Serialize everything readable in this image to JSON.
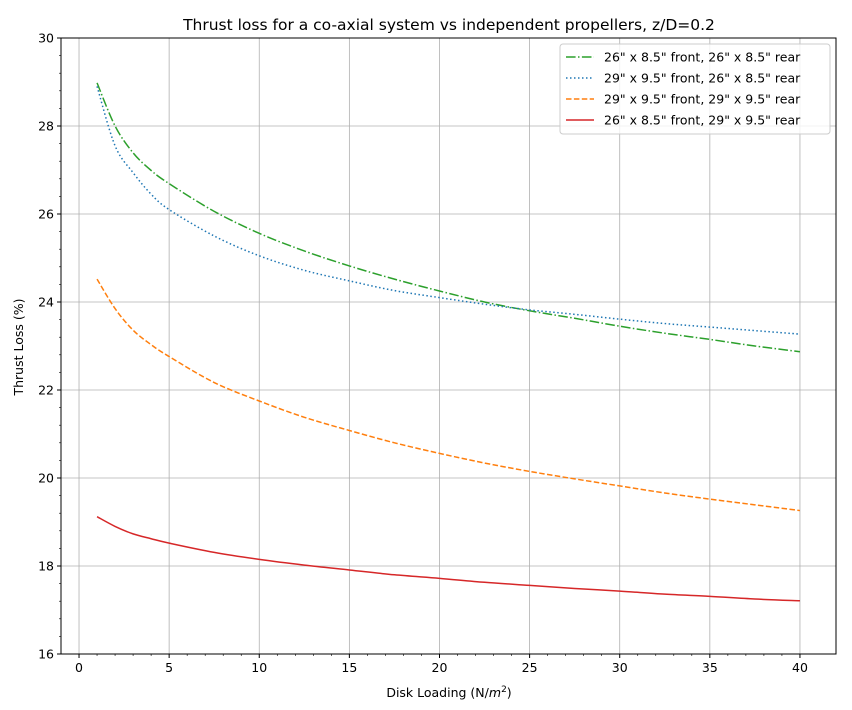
{
  "chart_data": {
    "type": "line",
    "title": "Thrust loss for a co-axial system vs independent propellers, z/D=0.2",
    "xlabel": "Disk Loading (N/m²)",
    "ylabel": "Thrust Loss (%)",
    "xlim": [
      -1,
      42
    ],
    "ylim": [
      16,
      30
    ],
    "x_ticks": [
      "0",
      "5",
      "10",
      "15",
      "20",
      "25",
      "30",
      "35",
      "40"
    ],
    "y_ticks": [
      "16",
      "18",
      "20",
      "22",
      "24",
      "26",
      "28",
      "30"
    ],
    "grid": true,
    "legend_position": "top-right",
    "x": [
      1,
      2,
      3,
      4,
      5,
      7.5,
      10,
      12.5,
      15,
      17.5,
      20,
      22.5,
      25,
      27.5,
      30,
      32.5,
      35,
      37.5,
      40
    ],
    "series": [
      {
        "name": "26\" x 8.5\" front, 26\" x 8.5\" rear",
        "color": "#2ca02c",
        "style": "dashdot",
        "values": [
          28.98,
          28.0,
          27.39,
          26.99,
          26.69,
          26.06,
          25.56,
          25.16,
          24.82,
          24.52,
          24.25,
          24.0,
          23.8,
          23.63,
          23.45,
          23.29,
          23.15,
          23.0,
          22.87
        ]
      },
      {
        "name": "29\" x 9.5\" front, 26\" x 8.5\" rear",
        "color": "#1f77b4",
        "style": "dotted",
        "values": [
          28.9,
          27.55,
          26.94,
          26.45,
          26.1,
          25.5,
          25.05,
          24.72,
          24.48,
          24.26,
          24.1,
          23.95,
          23.82,
          23.72,
          23.61,
          23.51,
          23.43,
          23.35,
          23.27
        ]
      },
      {
        "name": "29\" x 9.5\" front, 29\" x 9.5\" rear",
        "color": "#ff7f0e",
        "style": "dashed",
        "values": [
          24.52,
          23.85,
          23.36,
          23.03,
          22.76,
          22.17,
          21.75,
          21.38,
          21.08,
          20.8,
          20.56,
          20.34,
          20.15,
          19.98,
          19.82,
          19.66,
          19.52,
          19.39,
          19.26
        ]
      },
      {
        "name": "26\" x 8.5\" front, 29\" x 9.5\" rear",
        "color": "#d62728",
        "style": "solid",
        "values": [
          19.12,
          18.9,
          18.73,
          18.62,
          18.52,
          18.31,
          18.15,
          18.02,
          17.91,
          17.8,
          17.72,
          17.63,
          17.56,
          17.49,
          17.43,
          17.36,
          17.31,
          17.25,
          17.21
        ]
      }
    ]
  }
}
